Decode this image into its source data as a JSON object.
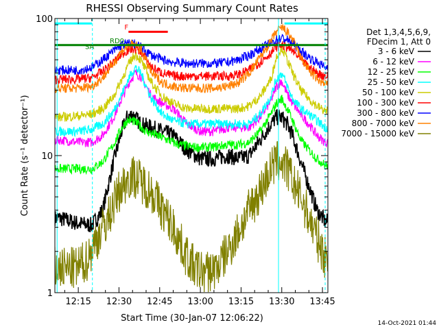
{
  "chart_data": {
    "type": "line",
    "title": "RHESSI Observing Summary Count Rates",
    "xlabel": "Start Time (30-Jan-07 12:06:22)",
    "ylabel": "Count Rate (s⁻¹ detector⁻¹)",
    "yscale": "log",
    "ylim": [
      1,
      100
    ],
    "xlim_minutes": [
      6.37,
      107.0
    ],
    "x_ticks": [
      {
        "label": "12:15",
        "min": 15
      },
      {
        "label": "12:30",
        "min": 30
      },
      {
        "label": "12:45",
        "min": 45
      },
      {
        "label": "13:00",
        "min": 60
      },
      {
        "label": "13:15",
        "min": 75
      },
      {
        "label": "13:30",
        "min": 90
      },
      {
        "label": "13:45",
        "min": 105
      }
    ],
    "y_ticks": [
      {
        "label": "1",
        "value": 1
      },
      {
        "label": "10",
        "value": 10
      },
      {
        "label": "100",
        "value": 100
      }
    ],
    "legend": {
      "position": "right",
      "header": [
        "Det 1,3,4,5,6,9,",
        "FDecim 1, Att 0"
      ]
    },
    "annotations": [
      {
        "text": "F",
        "color": "#ff0000",
        "min": 32,
        "value": 83
      },
      {
        "text": "RD0",
        "color": "#008000",
        "min": 26.6,
        "value": 66
      },
      {
        "text": "SA",
        "color": "#008000",
        "min": 17.5,
        "value": 60
      }
    ],
    "series": [
      {
        "name": "3 - 6 keV",
        "color": "#000000",
        "x": [
          8,
          15,
          20,
          24,
          28,
          31,
          33,
          35,
          38,
          42,
          46,
          50,
          55,
          60,
          65,
          70,
          74,
          78,
          82,
          86,
          88,
          90,
          92,
          94,
          97,
          100,
          103,
          106
        ],
        "y": [
          3.5,
          3.2,
          3.1,
          4,
          9,
          15,
          19,
          20,
          17,
          16,
          15,
          14,
          11,
          9.5,
          9.5,
          10,
          9.5,
          10,
          13,
          17,
          19,
          19,
          17,
          14,
          9,
          6,
          4,
          3.3
        ]
      },
      {
        "name": "6 - 12 keV",
        "color": "#ff00ff",
        "x": [
          8,
          15,
          20,
          24,
          28,
          31,
          34,
          36,
          38,
          42,
          46,
          50,
          55,
          60,
          65,
          70,
          74,
          78,
          82,
          86,
          88,
          90,
          92,
          94,
          97,
          100,
          103,
          106
        ],
        "y": [
          13,
          12.5,
          12.5,
          14,
          19,
          26,
          35,
          40,
          38,
          27,
          24,
          22,
          17,
          15,
          15,
          16,
          16,
          16,
          19,
          25,
          32,
          35,
          28,
          24,
          20,
          17,
          14,
          12.5
        ]
      },
      {
        "name": "12 - 25 keV",
        "color": "#00ff00",
        "x": [
          8,
          15,
          20,
          24,
          28,
          31,
          33,
          35,
          37,
          40,
          44,
          48,
          52,
          58,
          64,
          70,
          74,
          78,
          82,
          86,
          88,
          90,
          92,
          94,
          97,
          100,
          103,
          106
        ],
        "y": [
          8,
          8,
          8,
          9,
          12,
          16,
          18,
          18,
          17,
          15,
          14,
          13,
          12,
          11.5,
          11.5,
          12,
          12,
          12.5,
          15,
          20,
          24,
          26,
          22,
          18,
          13,
          11,
          9.5,
          8.5
        ]
      },
      {
        "name": "25 - 50 keV",
        "color": "#00ffff",
        "x": [
          8,
          15,
          20,
          24,
          28,
          31,
          34,
          36,
          38,
          42,
          46,
          50,
          55,
          60,
          65,
          70,
          74,
          78,
          82,
          86,
          88,
          90,
          92,
          94,
          97,
          100,
          103,
          106
        ],
        "y": [
          15,
          15,
          15.5,
          17,
          21,
          28,
          38,
          44,
          40,
          26,
          20,
          18,
          17,
          17,
          17,
          17,
          17,
          17,
          20,
          27,
          36,
          40,
          32,
          26,
          22,
          20,
          18,
          16
        ]
      },
      {
        "name": "50 - 100 keV",
        "color": "#cccc00",
        "x": [
          8,
          15,
          20,
          24,
          28,
          31,
          34,
          36,
          38,
          42,
          46,
          50,
          55,
          60,
          65,
          70,
          74,
          78,
          82,
          86,
          88,
          90,
          92,
          94,
          97,
          100,
          103,
          106
        ],
        "y": [
          19,
          19.5,
          20,
          22,
          27,
          36,
          48,
          55,
          50,
          34,
          27,
          24,
          22,
          22,
          22,
          22,
          22,
          23,
          27,
          36,
          52,
          62,
          50,
          40,
          30,
          26,
          23,
          21
        ]
      },
      {
        "name": "100 - 300 keV",
        "color": "#ff0000",
        "x": [
          8,
          15,
          20,
          24,
          28,
          31,
          34,
          36,
          38,
          42,
          46,
          50,
          55,
          60,
          65,
          70,
          74,
          78,
          82,
          86,
          88,
          90,
          92,
          94,
          97,
          100,
          103,
          106
        ],
        "y": [
          36,
          36,
          37,
          41,
          48,
          55,
          60,
          60,
          58,
          44,
          40,
          38,
          38,
          38,
          38,
          38,
          39,
          42,
          48,
          56,
          62,
          64,
          62,
          58,
          50,
          44,
          40,
          38
        ]
      },
      {
        "name": "300 - 800 keV",
        "color": "#0000ff",
        "x": [
          8,
          15,
          20,
          24,
          28,
          31,
          34,
          36,
          38,
          42,
          46,
          50,
          55,
          60,
          65,
          70,
          74,
          78,
          82,
          86,
          88,
          90,
          92,
          94,
          97,
          100,
          103,
          106
        ],
        "y": [
          42,
          42,
          44,
          50,
          58,
          64,
          66,
          65,
          62,
          54,
          50,
          48,
          47,
          47,
          47,
          48,
          50,
          54,
          60,
          66,
          70,
          72,
          70,
          66,
          58,
          52,
          48,
          44
        ]
      },
      {
        "name": "800 - 7000 keV",
        "color": "#ff8000",
        "x": [
          8,
          15,
          20,
          24,
          28,
          31,
          34,
          36,
          38,
          42,
          46,
          50,
          55,
          60,
          65,
          70,
          74,
          78,
          82,
          86,
          88,
          90,
          92,
          94,
          97,
          100,
          103,
          106
        ],
        "y": [
          31,
          31,
          32,
          37,
          47,
          58,
          64,
          64,
          60,
          40,
          34,
          32,
          31,
          31,
          31,
          32,
          34,
          40,
          52,
          68,
          80,
          86,
          80,
          70,
          52,
          42,
          36,
          33
        ]
      },
      {
        "name": "7000 - 15000 keV",
        "color": "#808000",
        "x": [
          8,
          14,
          18,
          22,
          26,
          30,
          34,
          36,
          38,
          42,
          46,
          50,
          54,
          58,
          62,
          66,
          70,
          74,
          78,
          82,
          86,
          88,
          90,
          92,
          94,
          98,
          102,
          106
        ],
        "y": [
          1.5,
          1.5,
          1.7,
          2.5,
          3.5,
          5.5,
          7,
          7,
          6.5,
          5.5,
          4,
          3,
          2,
          1.5,
          1.4,
          1.5,
          2,
          2.8,
          4,
          5.5,
          8,
          9,
          9,
          8,
          6.5,
          4.5,
          2.8,
          1.8
        ]
      }
    ],
    "flags": [
      {
        "label": "SAA",
        "color": "#00ffff",
        "min_start": 6.5,
        "min_end": 20,
        "value": 92
      },
      {
        "label": "SAA",
        "color": "#00ffff",
        "min_start": 91,
        "min_end": 107,
        "value": 92
      },
      {
        "label": "Flare",
        "color": "#ff0000",
        "min_start": 33.5,
        "min_end": 48,
        "value": 80
      },
      {
        "label": "Decim",
        "color": "#008000",
        "min_start": 6.5,
        "min_end": 107,
        "value": 64
      }
    ],
    "markers": [
      {
        "color": "#00ffff",
        "min": 7.2,
        "style": "solid"
      },
      {
        "color": "#00ffff",
        "min": 20.2,
        "style": "dashed"
      },
      {
        "color": "#00ffff",
        "min": 88.8,
        "style": "solid"
      },
      {
        "color": "#00ffff",
        "min": 106.0,
        "style": "dashed"
      }
    ],
    "grid": false
  },
  "timestamp": "14-Oct-2021 01:44"
}
